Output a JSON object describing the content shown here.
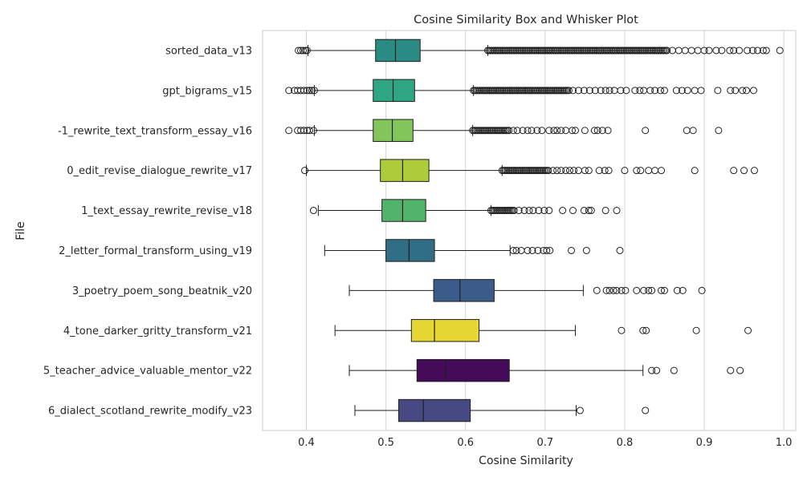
{
  "chart_data": {
    "type": "box",
    "title": "Cosine Similarity Box and Whisker Plot",
    "xlabel": "Cosine Similarity",
    "ylabel": "File",
    "xlim": [
      0.345,
      1.015
    ],
    "xticks": [
      0.4,
      0.5,
      0.6,
      0.7,
      0.8,
      0.9,
      1.0
    ],
    "xtick_labels": [
      "0.4",
      "0.5",
      "0.6",
      "0.7",
      "0.8",
      "0.9",
      "1.0"
    ],
    "grid": "vertical",
    "categories": [
      "sorted_data_v13",
      "gpt_bigrams_v15",
      "-1_rewrite_text_transform_essay_v16",
      "0_edit_revise_dialogue_rewrite_v17",
      "1_text_essay_rewrite_revise_v18",
      "2_letter_formal_transform_using_v19",
      "3_poetry_poem_song_beatnik_v20",
      "4_tone_darker_gritty_transform_v21",
      "5_teacher_advice_valuable_mentor_v22",
      "6_dialect_scotland_rewrite_modify_v23"
    ],
    "boxes": [
      {
        "name": "sorted_data_v13",
        "whislo": 0.402,
        "q1": 0.487,
        "median": 0.512,
        "q3": 0.543,
        "whishi": 0.628,
        "color": "#2a8b85",
        "outliers_low": [
          0.39,
          0.393,
          0.396,
          0.399,
          0.401
        ],
        "outliers_high_dense": [
          0.628,
          0.855
        ],
        "outliers_high": [
          0.86,
          0.868,
          0.876,
          0.884,
          0.892,
          0.9,
          0.906,
          0.915,
          0.922,
          0.932,
          0.937,
          0.944,
          0.954,
          0.961,
          0.967,
          0.974,
          0.978,
          0.995
        ]
      },
      {
        "name": "gpt_bigrams_v15",
        "whislo": 0.41,
        "q1": 0.484,
        "median": 0.509,
        "q3": 0.536,
        "whishi": 0.61,
        "color": "#2ea583",
        "outliers_low": [
          0.378,
          0.385,
          0.389,
          0.393,
          0.397,
          0.401,
          0.404,
          0.407,
          0.41
        ],
        "outliers_high_dense": [
          0.61,
          0.73
        ],
        "outliers_high": [
          0.735,
          0.742,
          0.749,
          0.756,
          0.763,
          0.77,
          0.776,
          0.781,
          0.787,
          0.795,
          0.802,
          0.813,
          0.819,
          0.824,
          0.832,
          0.838,
          0.845,
          0.85,
          0.865,
          0.872,
          0.879,
          0.888,
          0.896,
          0.917,
          0.933,
          0.939,
          0.948,
          0.953,
          0.962
        ]
      },
      {
        "name": "-1_rewrite_text_transform_essay_v16",
        "whislo": 0.41,
        "q1": 0.484,
        "median": 0.508,
        "q3": 0.534,
        "whishi": 0.609,
        "color": "#82c55b",
        "outliers_low": [
          0.378,
          0.389,
          0.393,
          0.397,
          0.401,
          0.404,
          0.409
        ],
        "outliers_high_dense": [
          0.609,
          0.655
        ],
        "outliers_high": [
          0.66,
          0.665,
          0.672,
          0.678,
          0.683,
          0.69,
          0.696,
          0.705,
          0.711,
          0.715,
          0.72,
          0.726,
          0.734,
          0.738,
          0.75,
          0.762,
          0.766,
          0.772,
          0.779,
          0.826,
          0.878,
          0.886,
          0.918
        ]
      },
      {
        "name": "0_edit_revise_dialogue_rewrite_v17",
        "whislo": 0.4,
        "q1": 0.493,
        "median": 0.521,
        "q3": 0.554,
        "whishi": 0.646,
        "color": "#aecb39",
        "outliers_low": [
          0.398
        ],
        "outliers_high_dense": [
          0.646,
          0.705
        ],
        "outliers_high": [
          0.71,
          0.715,
          0.72,
          0.726,
          0.731,
          0.736,
          0.742,
          0.75,
          0.755,
          0.768,
          0.775,
          0.78,
          0.8,
          0.815,
          0.82,
          0.83,
          0.838,
          0.846,
          0.888,
          0.937,
          0.95,
          0.963
        ]
      },
      {
        "name": "1_text_essay_rewrite_revise_v18",
        "whislo": 0.415,
        "q1": 0.495,
        "median": 0.521,
        "q3": 0.55,
        "whishi": 0.632,
        "color": "#52b46c",
        "outliers_low": [
          0.409
        ],
        "outliers_high_dense": [
          0.632,
          0.662
        ],
        "outliers_high": [
          0.667,
          0.674,
          0.68,
          0.685,
          0.692,
          0.699,
          0.705,
          0.722,
          0.735,
          0.749,
          0.755,
          0.758,
          0.776,
          0.79
        ]
      },
      {
        "name": "2_letter_formal_transform_using_v19",
        "whislo": 0.423,
        "q1": 0.5,
        "median": 0.529,
        "q3": 0.561,
        "whishi": 0.656,
        "color": "#2f6e85",
        "outliers_low": [],
        "outliers_high_dense": [],
        "outliers_high": [
          0.66,
          0.664,
          0.67,
          0.678,
          0.684,
          0.691,
          0.698,
          0.702,
          0.706,
          0.733,
          0.752,
          0.794
        ]
      },
      {
        "name": "3_poetry_poem_song_beatnik_v20",
        "whislo": 0.454,
        "q1": 0.56,
        "median": 0.593,
        "q3": 0.636,
        "whishi": 0.748,
        "color": "#3b5b8a",
        "outliers_low": [],
        "outliers_high_dense": [],
        "outliers_high": [
          0.765,
          0.777,
          0.781,
          0.786,
          0.79,
          0.796,
          0.801,
          0.815,
          0.824,
          0.83,
          0.834,
          0.846,
          0.85,
          0.866,
          0.873,
          0.897
        ]
      },
      {
        "name": "4_tone_darker_gritty_transform_v21",
        "whislo": 0.436,
        "q1": 0.532,
        "median": 0.561,
        "q3": 0.617,
        "whishi": 0.738,
        "color": "#e5d634",
        "outliers_low": [],
        "outliers_high_dense": [],
        "outliers_high": [
          0.796,
          0.823,
          0.827,
          0.89,
          0.955
        ]
      },
      {
        "name": "5_teacher_advice_valuable_mentor_v22",
        "whislo": 0.454,
        "q1": 0.539,
        "median": 0.575,
        "q3": 0.655,
        "whishi": 0.823,
        "color": "#440b59",
        "outliers_low": [],
        "outliers_high_dense": [],
        "outliers_high": [
          0.834,
          0.84,
          0.862,
          0.933,
          0.945
        ]
      },
      {
        "name": "6_dialect_scotland_rewrite_modify_v23",
        "whislo": 0.461,
        "q1": 0.516,
        "median": 0.547,
        "q3": 0.606,
        "whishi": 0.739,
        "color": "#474a82",
        "outliers_low": [],
        "outliers_high_dense": [],
        "outliers_high": [
          0.744,
          0.826
        ]
      }
    ]
  }
}
